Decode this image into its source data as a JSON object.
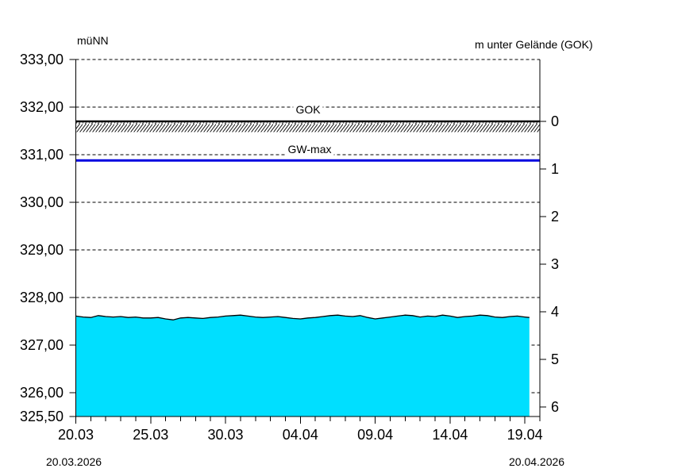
{
  "chart_data": {
    "type": "area",
    "title_left": "müNN",
    "title_right": "m unter Gelände (GOK)",
    "left_axis": {
      "unit": "müNN",
      "min": 325.5,
      "max": 333.0,
      "tick_values": [
        333.0,
        332.0,
        331.0,
        330.0,
        329.0,
        328.0,
        327.0,
        326.0,
        325.5
      ],
      "tick_labels": [
        "333,00",
        "332,00",
        "331,00",
        "330,00",
        "329,00",
        "328,00",
        "327,00",
        "326,00",
        "325,50"
      ]
    },
    "right_axis": {
      "label": "m unter Gelände (GOK)",
      "tick_values": [
        0,
        1,
        2,
        3,
        4,
        5,
        6
      ],
      "zero_level_muenn": 331.7
    },
    "x_axis": {
      "start_date": "20.03.2026",
      "end_date": "20.04.2026",
      "total_days": 31,
      "minor_tick_every_days": 1,
      "major_ticks": [
        {
          "day": 0,
          "label": "20.03"
        },
        {
          "day": 5,
          "label": "25.03"
        },
        {
          "day": 10,
          "label": "30.03"
        },
        {
          "day": 15,
          "label": "04.04"
        },
        {
          "day": 20,
          "label": "09.04"
        },
        {
          "day": 25,
          "label": "14.04"
        },
        {
          "day": 30,
          "label": "19.04"
        }
      ]
    },
    "gridline_values": [
      333.0,
      332.0,
      331.0,
      330.0,
      329.0,
      328.0,
      327.0,
      326.0
    ],
    "gok_line": {
      "label": "GOK",
      "value_muenn": 331.7,
      "color": "#000000"
    },
    "gw_max_line": {
      "label": "GW-max",
      "value_muenn": 330.88,
      "color": "#0000E0"
    },
    "water_series": {
      "fill_color": "#00DFFF",
      "edge_color": "#000000",
      "days": [
        0,
        0.5,
        1,
        1.5,
        2,
        2.5,
        3,
        3.5,
        4,
        4.5,
        5,
        5.5,
        6,
        6.5,
        7,
        7.5,
        8,
        8.5,
        9,
        9.5,
        10,
        10.5,
        11,
        11.5,
        12,
        12.5,
        13,
        13.5,
        14,
        14.5,
        15,
        15.5,
        16,
        16.5,
        17,
        17.5,
        18,
        18.5,
        19,
        19.5,
        20,
        20.5,
        21,
        21.5,
        22,
        22.5,
        23,
        23.5,
        24,
        24.5,
        25,
        25.5,
        26,
        26.5,
        27,
        27.5,
        28,
        28.5,
        29,
        29.5,
        30,
        30.3
      ],
      "values_muenn": [
        327.61,
        327.59,
        327.58,
        327.62,
        327.6,
        327.59,
        327.6,
        327.58,
        327.59,
        327.57,
        327.57,
        327.58,
        327.55,
        327.53,
        327.57,
        327.58,
        327.57,
        327.56,
        327.58,
        327.59,
        327.61,
        327.62,
        327.63,
        327.61,
        327.59,
        327.58,
        327.59,
        327.6,
        327.58,
        327.56,
        327.55,
        327.57,
        327.58,
        327.6,
        327.62,
        327.63,
        327.61,
        327.6,
        327.62,
        327.58,
        327.55,
        327.57,
        327.59,
        327.61,
        327.63,
        327.62,
        327.59,
        327.61,
        327.6,
        327.63,
        327.61,
        327.58,
        327.6,
        327.61,
        327.63,
        327.62,
        327.59,
        327.58,
        327.6,
        327.61,
        327.59,
        327.58
      ]
    }
  },
  "labels": {
    "left_axis_title": "müNN",
    "right_axis_title": "m unter Gelände (GOK)",
    "gok": "GOK",
    "gw_max": "GW-max",
    "date_start": "20.03.2026",
    "date_end": "20.04.2026"
  }
}
